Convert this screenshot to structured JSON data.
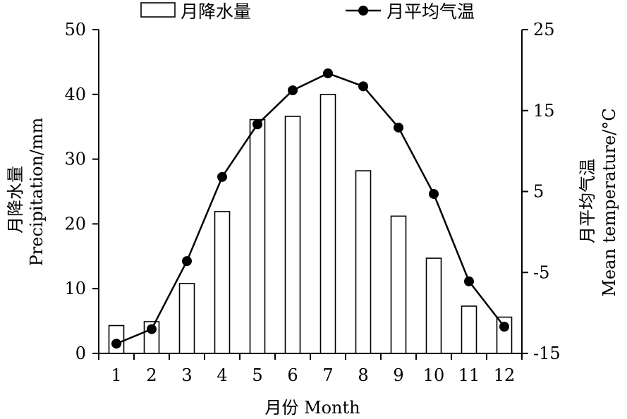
{
  "chart_data": {
    "type": "bar+line",
    "categories": [
      "1",
      "2",
      "3",
      "4",
      "5",
      "6",
      "7",
      "8",
      "9",
      "10",
      "11",
      "12"
    ],
    "series": [
      {
        "name": "月降水量",
        "type": "bar",
        "axis": "left",
        "values": [
          4.3,
          4.9,
          10.8,
          21.9,
          36.1,
          36.6,
          40.0,
          28.2,
          21.2,
          14.7,
          7.3,
          5.6
        ]
      },
      {
        "name": "月平均气温",
        "type": "line",
        "axis": "right",
        "values": [
          -13.8,
          -12.0,
          -3.6,
          6.8,
          13.3,
          17.5,
          19.6,
          18.0,
          12.9,
          4.7,
          -6.1,
          -11.7
        ]
      }
    ],
    "xlabel": "月份 Month",
    "ylabel_left_cn": "月降水量",
    "ylabel_left_en": "Precipitation/mm",
    "ylabel_right_cn": "月平均气温",
    "ylabel_right_en": "Mean temperature/°C",
    "y_left": {
      "lim": [
        0,
        50
      ],
      "ticks": [
        "0",
        "10",
        "20",
        "30",
        "40",
        "50"
      ]
    },
    "y_right": {
      "lim": [
        -15,
        25
      ],
      "ticks": [
        "-15",
        "-5",
        "5",
        "15",
        "25"
      ]
    },
    "grid": false,
    "legend_position": "top"
  }
}
